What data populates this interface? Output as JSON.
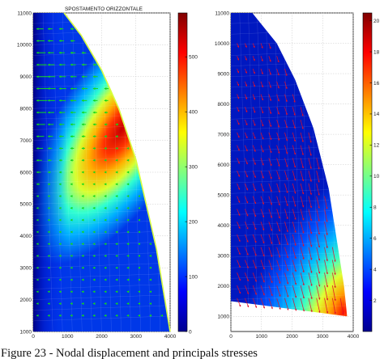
{
  "caption": "Figure 23 - Nodal displacement and principals stresses",
  "chart_data": [
    {
      "type": "heatmap",
      "title": "SPOSTAMENTO ORIZZONTALE",
      "xlabel": "",
      "ylabel": "",
      "xlim": [
        0,
        4000
      ],
      "ylim": [
        1000,
        11000
      ],
      "x_ticks": [
        "0",
        "1000",
        "2000",
        "3000",
        "4000"
      ],
      "y_ticks": [
        "1000",
        "2000",
        "3000",
        "4000",
        "5000",
        "6000",
        "7000",
        "8000",
        "9000",
        "10000",
        "11000"
      ],
      "colorbar": {
        "range": [
          0,
          580
        ],
        "ticks": [
          "0",
          "100",
          "200",
          "300",
          "400",
          "500"
        ]
      },
      "colormap": "jet",
      "grid": true,
      "boundary": {
        "x": [
          0,
          900,
          1400,
          2000,
          2500,
          3000,
          3600,
          4000
        ],
        "y": [
          11000,
          11000,
          10300,
          9200,
          8000,
          6400,
          3600,
          1000
        ]
      },
      "overlay": "green displacement arrows, pointing left, longest near the left edge at heights 7000–10000"
    },
    {
      "type": "heatmap",
      "title": "",
      "xlabel": "",
      "ylabel": "",
      "xlim": [
        0,
        4000
      ],
      "ylim": [
        500,
        11000
      ],
      "x_ticks": [
        "0",
        "1000",
        "2000",
        "3000",
        "4000"
      ],
      "y_ticks": [
        "1000",
        "2000",
        "3000",
        "4000",
        "5000",
        "6000",
        "7000",
        "8000",
        "9000",
        "10000",
        "11000"
      ],
      "colorbar": {
        "range": [
          0,
          20.5
        ],
        "ticks": [
          "2",
          "4",
          "6",
          "8",
          "10",
          "12",
          "14",
          "16",
          "18",
          "20"
        ]
      },
      "colormap": "jet",
      "grid": true,
      "boundary": {
        "x": [
          0,
          700,
          1500,
          2100,
          2700,
          3200,
          3700,
          3800,
          0
        ],
        "y": [
          11000,
          11000,
          10000,
          8800,
          7200,
          5200,
          2000,
          1000,
          1500
        ]
      },
      "overlay": "red principal stress arrows pointing down-right, converging toward the bottom-right corner near (3800, 500)"
    }
  ]
}
